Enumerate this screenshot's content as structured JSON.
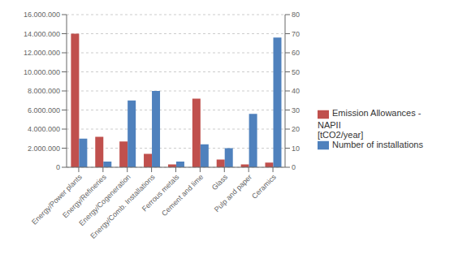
{
  "chart_data": {
    "type": "bar",
    "categories": [
      "Energy/Power plants",
      "Energy/Refineries",
      "Energy/Cogeneration",
      "Energy/Comb. Installations",
      "Ferrous metals",
      "Cement and lime",
      "Glass",
      "Pulp and paper",
      "Ceramics"
    ],
    "series": [
      {
        "name": "Emission Allowances - NAPII\n[tCO2/year]",
        "color": "#C0504D",
        "axis": "y",
        "values": [
          14000000,
          3200000,
          2700000,
          1400000,
          300000,
          7200000,
          800000,
          300000,
          500000
        ]
      },
      {
        "name": "Number of installations",
        "color": "#4F81BD",
        "axis": "y2",
        "values": [
          15,
          3,
          35,
          40,
          3,
          12,
          10,
          28,
          68
        ]
      }
    ],
    "ylim": [
      0,
      16000000
    ],
    "yticks": [
      0,
      {
        "value": 2000000,
        "label": "2.000.000"
      },
      {
        "value": 4000000,
        "label": "4.000.000"
      },
      {
        "value": 6000000,
        "label": "6.000.000"
      },
      {
        "value": 8000000,
        "label": "8.000.000"
      },
      {
        "value": 10000000,
        "label": "10.000.000"
      },
      {
        "value": 12000000,
        "label": "12.000.000"
      },
      {
        "value": 14000000,
        "label": "14.000.000"
      },
      {
        "value": 16000000,
        "label": "16.000.000"
      }
    ],
    "y2lim": [
      0,
      80
    ],
    "y2ticks": [
      0,
      10,
      20,
      30,
      40,
      50,
      60,
      70,
      80
    ],
    "grid": true,
    "legend": "right"
  }
}
